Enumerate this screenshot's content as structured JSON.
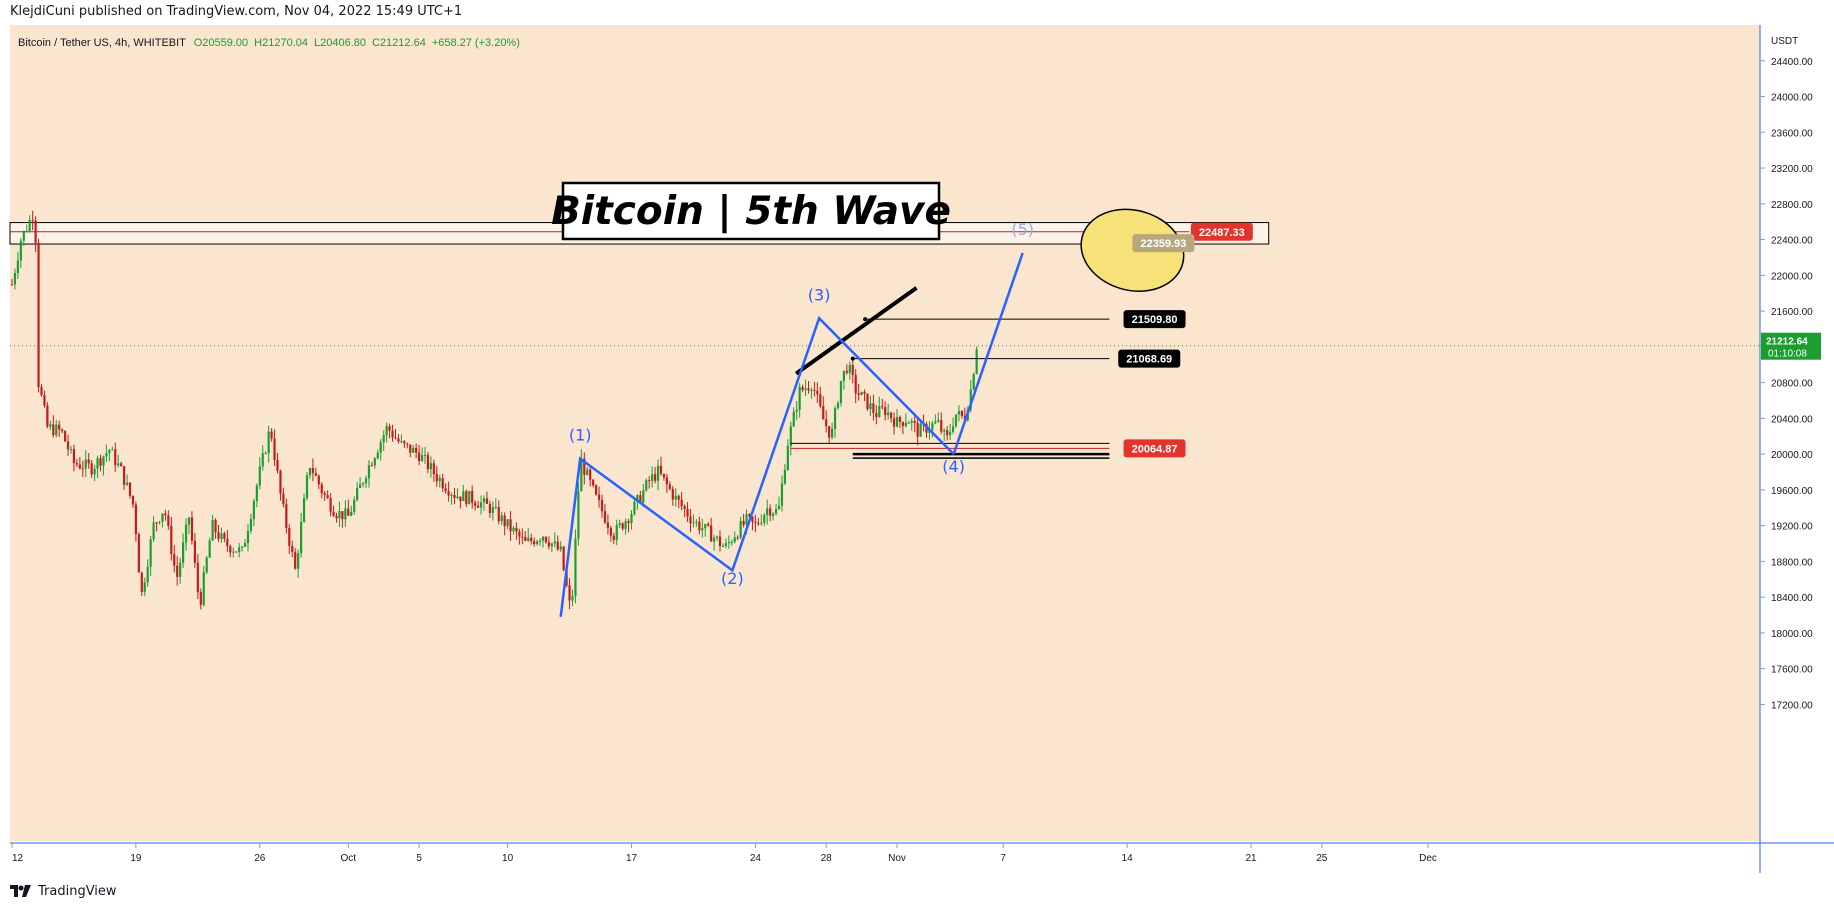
{
  "publisher": {
    "text": "KlejdiCuni published on TradingView.com, Nov 04, 2022 15:49 UTC+1"
  },
  "footer": {
    "brand": "TradingView",
    "logo_icon": "tradingview-logo-icon"
  },
  "colors": {
    "background": "#fae5cf",
    "up": "#22ab94",
    "up_candle": "#1b9e2f",
    "down": "#c21d1d",
    "wave": "#2962ff",
    "wave5": "#9fa8e8",
    "highlight": "#f7e27a",
    "red_label": "#e0342c"
  },
  "chart_data": {
    "type": "candlestick",
    "symbol_line": {
      "name": "Bitcoin / Tether US, 4h, WHITEBIT",
      "O": "O20559.00",
      "H": "H21270.04",
      "L": "L20406.80",
      "C": "C21212.64",
      "change": "+658.27 (+3.20%)"
    },
    "title": "Bitcoin | 5th Wave",
    "currency": "USDT",
    "ylim": [
      16800,
      24800
    ],
    "y_ticks": [
      "24400.00",
      "24000.00",
      "23600.00",
      "23200.00",
      "22800.00",
      "22400.00",
      "22000.00",
      "21600.00",
      "21200.00",
      "20800.00",
      "20400.00",
      "20000.00",
      "19600.00",
      "19200.00",
      "18800.00",
      "18400.00",
      "18000.00",
      "17600.00",
      "17200.00"
    ],
    "x_ticks": [
      "12",
      "19",
      "26",
      "Oct",
      "5",
      "10",
      "17",
      "24",
      "28",
      "Nov",
      "7",
      "14",
      "21",
      "25",
      "Dec"
    ],
    "x_tick_days": [
      0,
      7,
      14,
      19,
      23,
      28,
      35,
      42,
      46,
      50,
      56,
      63,
      70,
      74,
      80
    ],
    "last_price": {
      "value": "21212.64",
      "countdown": "01:10:08",
      "y": 21212.64
    },
    "resistance_zone": {
      "top": 22590,
      "bottom": 22350,
      "mid": 22487.33
    },
    "price_labels": [
      {
        "text": "22487.33",
        "y": 22487.33,
        "style": "red",
        "day": 66.6
      },
      {
        "text": "22359.93",
        "y": 22359.93,
        "style": "faded",
        "day": 63.3
      },
      {
        "text": "21509.80",
        "y": 21509.8,
        "style": "black",
        "day": 62.8
      },
      {
        "text": "21068.69",
        "y": 21068.69,
        "style": "black",
        "day": 62.5
      },
      {
        "text": "20064.87",
        "y": 20064.87,
        "style": "red",
        "day": 62.8
      }
    ],
    "waves": [
      {
        "label": "(1)",
        "day": 32.1,
        "y": 19950,
        "label_y": 20150
      },
      {
        "label": "(2)",
        "day": 40.7,
        "y": 18700,
        "label_y": 18550
      },
      {
        "label": "(3)",
        "day": 45.6,
        "y": 21520,
        "label_y": 21720
      },
      {
        "label": "(4)",
        "day": 53.2,
        "y": 20000,
        "label_y": 19800
      },
      {
        "label": "(5)",
        "day": 57.1,
        "y": 22250,
        "label_y": 22450
      }
    ],
    "wave_start": {
      "day": 31.0,
      "y": 18180
    },
    "support_line": 20000,
    "trendline_points": [
      [
        44.3,
        20900
      ],
      [
        51.1,
        21860
      ]
    ],
    "circle_center": {
      "day": 63.3,
      "y": 22280
    },
    "candle_path": [
      [
        -0.2,
        21700
      ],
      [
        0.5,
        22400
      ],
      [
        1.1,
        22650
      ],
      [
        1.3,
        22750
      ],
      [
        1.5,
        20800
      ],
      [
        2.0,
        20300
      ],
      [
        2.8,
        20250
      ],
      [
        3.5,
        19900
      ],
      [
        4.5,
        19850
      ],
      [
        5.5,
        20050
      ],
      [
        6.2,
        19800
      ],
      [
        6.9,
        19400
      ],
      [
        7.3,
        18400
      ],
      [
        8.0,
        19200
      ],
      [
        8.6,
        19400
      ],
      [
        9.3,
        18600
      ],
      [
        10.0,
        19300
      ],
      [
        10.6,
        18300
      ],
      [
        11.3,
        19200
      ],
      [
        12.0,
        19000
      ],
      [
        13.0,
        18900
      ],
      [
        14.0,
        19800
      ],
      [
        14.6,
        20300
      ],
      [
        15.2,
        19500
      ],
      [
        16.0,
        18700
      ],
      [
        16.8,
        19900
      ],
      [
        17.6,
        19550
      ],
      [
        18.3,
        19350
      ],
      [
        19.0,
        19300
      ],
      [
        20.0,
        19800
      ],
      [
        21.2,
        20300
      ],
      [
        22.0,
        20100
      ],
      [
        23.0,
        20000
      ],
      [
        24.0,
        19750
      ],
      [
        25.0,
        19550
      ],
      [
        26.0,
        19500
      ],
      [
        27.0,
        19400
      ],
      [
        28.0,
        19200
      ],
      [
        29.0,
        19000
      ],
      [
        30.0,
        19100
      ],
      [
        31.0,
        18900
      ],
      [
        31.6,
        18200
      ],
      [
        32.1,
        19950
      ],
      [
        33.0,
        19500
      ],
      [
        34.0,
        19100
      ],
      [
        35.0,
        19350
      ],
      [
        36.0,
        19700
      ],
      [
        36.5,
        19800
      ],
      [
        37.5,
        19500
      ],
      [
        38.5,
        19250
      ],
      [
        39.5,
        19100
      ],
      [
        40.3,
        18950
      ],
      [
        40.8,
        19100
      ],
      [
        41.5,
        19250
      ],
      [
        42.0,
        19200
      ],
      [
        42.7,
        19400
      ],
      [
        43.3,
        19350
      ],
      [
        43.8,
        20100
      ],
      [
        44.5,
        20700
      ],
      [
        45.2,
        20800
      ],
      [
        45.8,
        20400
      ],
      [
        46.3,
        20200
      ],
      [
        46.8,
        20800
      ],
      [
        47.2,
        21000
      ],
      [
        47.7,
        20700
      ],
      [
        48.2,
        20600
      ],
      [
        48.8,
        20450
      ],
      [
        49.3,
        20500
      ],
      [
        50.0,
        20350
      ],
      [
        50.6,
        20400
      ],
      [
        51.2,
        20250
      ],
      [
        51.7,
        20300
      ],
      [
        52.3,
        20350
      ],
      [
        52.8,
        20150
      ],
      [
        53.3,
        20450
      ],
      [
        53.8,
        20400
      ],
      [
        54.2,
        20750
      ],
      [
        54.5,
        21220
      ]
    ]
  }
}
